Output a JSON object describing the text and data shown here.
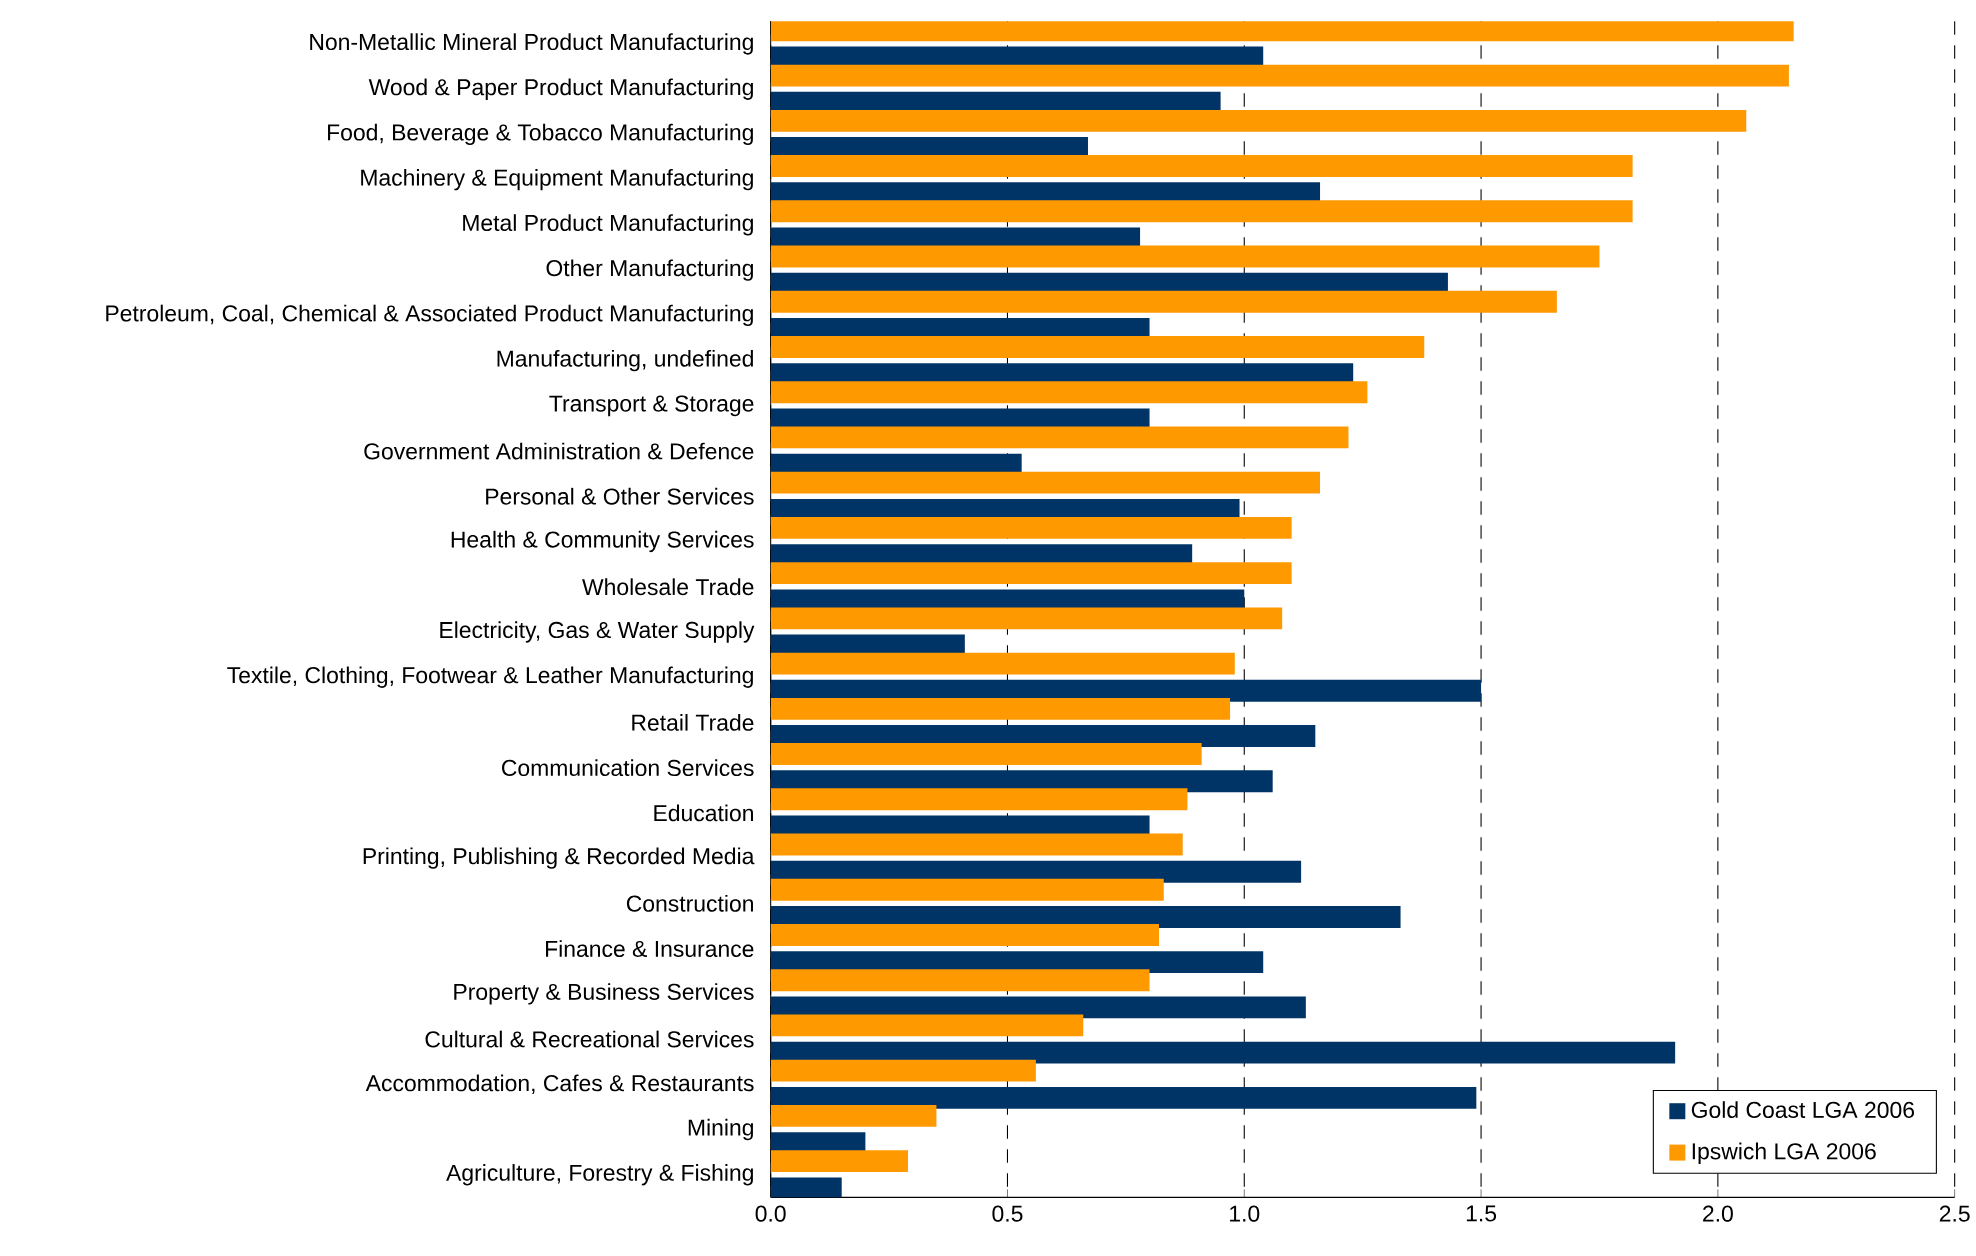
{
  "chart_data": {
    "type": "bar",
    "orientation": "horizontal",
    "categories": [
      "Non-Metallic Mineral Product Manufacturing",
      "Wood & Paper Product Manufacturing",
      "Food, Beverage & Tobacco Manufacturing",
      "Machinery & Equipment Manufacturing",
      "Metal Product Manufacturing",
      "Other Manufacturing",
      "Petroleum, Coal, Chemical & Associated Product Manufacturing",
      "Manufacturing, undefined",
      "Transport & Storage",
      "Government Administration & Defence",
      "Personal & Other Services",
      "Health & Community Services",
      "Wholesale Trade",
      "Electricity, Gas & Water Supply",
      "Textile, Clothing, Footwear & Leather Manufacturing",
      "Retail Trade",
      "Communication Services",
      "Education",
      "Printing, Publishing & Recorded Media",
      "Construction",
      "Finance & Insurance",
      "Property & Business Services",
      "Cultural & Recreational Services",
      "Accommodation, Cafes & Restaurants",
      "Mining",
      "Agriculture, Forestry & Fishing"
    ],
    "series": [
      {
        "name": "Gold Coast LGA 2006",
        "color": "#003366",
        "values": [
          1.04,
          0.95,
          0.67,
          1.16,
          0.78,
          1.43,
          0.8,
          1.23,
          0.8,
          0.53,
          0.99,
          0.89,
          1.0,
          0.41,
          1.5,
          1.15,
          1.06,
          0.8,
          1.12,
          1.33,
          1.04,
          1.13,
          1.91,
          1.49,
          0.2,
          0.15
        ]
      },
      {
        "name": "Ipswich LGA 2006",
        "color": "#ff9900",
        "values": [
          2.16,
          2.15,
          2.06,
          1.82,
          1.82,
          1.75,
          1.66,
          1.38,
          1.26,
          1.22,
          1.16,
          1.1,
          1.1,
          1.08,
          0.98,
          0.97,
          0.91,
          0.88,
          0.87,
          0.83,
          0.82,
          0.8,
          0.66,
          0.56,
          0.35,
          0.29
        ]
      }
    ],
    "xlim": [
      0,
      2.5
    ],
    "xticks": [
      {
        "value": 0,
        "label": "0.0"
      },
      {
        "value": 0.5,
        "label": "0.5"
      },
      {
        "value": 1,
        "label": "1.0"
      },
      {
        "value": 1.5,
        "label": "1.5"
      },
      {
        "value": 2,
        "label": "2.0"
      },
      {
        "value": 2.5,
        "label": "2.5"
      }
    ],
    "grid": "x",
    "legend": "bottom right"
  }
}
